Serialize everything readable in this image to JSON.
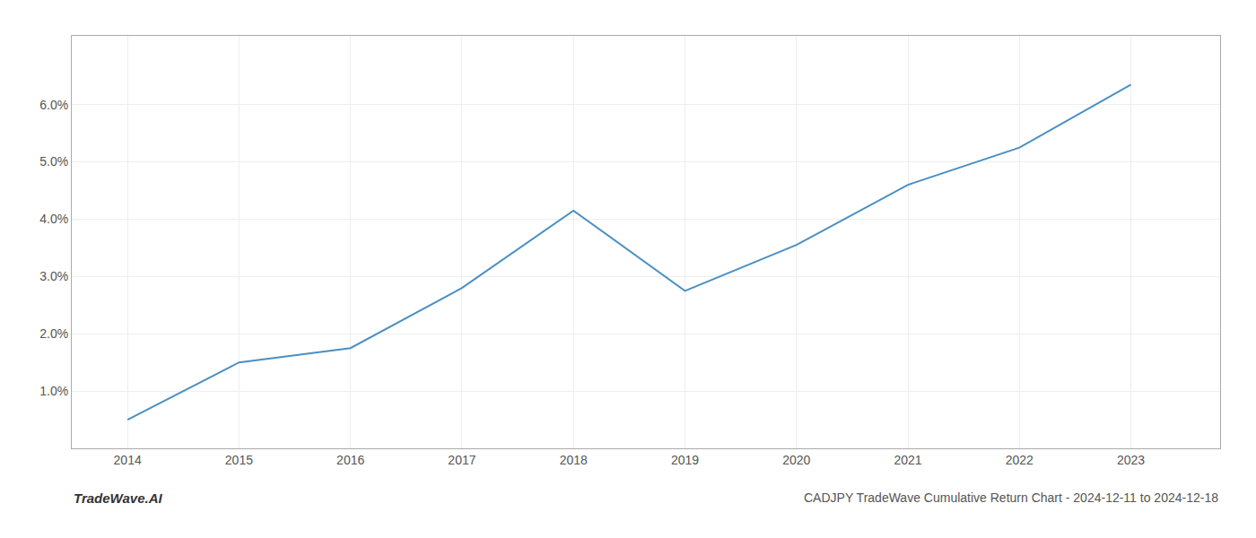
{
  "chart_data": {
    "type": "line",
    "title": "CADJPY TradeWave Cumulative Return Chart - 2024-12-11 to 2024-12-18",
    "annotations": [
      "TradeWave.AI"
    ],
    "x": [
      2014,
      2015,
      2016,
      2017,
      2018,
      2019,
      2020,
      2021,
      2022,
      2023
    ],
    "values": [
      0.005,
      0.015,
      0.0175,
      0.028,
      0.0415,
      0.0275,
      0.0355,
      0.046,
      0.0525,
      0.0635
    ],
    "color": "#4a90c4",
    "xlim": [
      2013.5,
      2023.8
    ],
    "ylim": [
      0.0,
      0.072
    ],
    "xticks": [
      2014,
      2015,
      2016,
      2017,
      2018,
      2019,
      2020,
      2021,
      2022,
      2023
    ],
    "yticks": [
      {
        "value": 0.01,
        "label": "1.0%"
      },
      {
        "value": 0.02,
        "label": "2.0%"
      },
      {
        "value": 0.03,
        "label": "3.0%"
      },
      {
        "value": 0.04,
        "label": "4.0%"
      },
      {
        "value": 0.05,
        "label": "5.0%"
      },
      {
        "value": 0.06,
        "label": "6.0%"
      }
    ],
    "grid": true
  }
}
